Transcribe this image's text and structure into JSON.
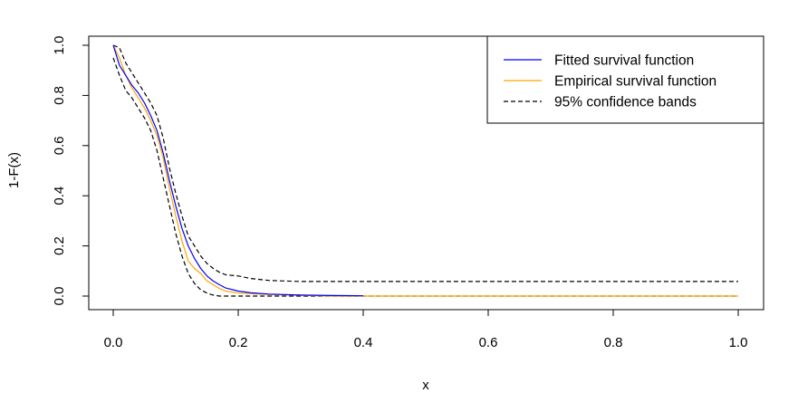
{
  "chart_data": {
    "type": "line",
    "title": "",
    "xlabel": "x",
    "ylabel": "1-F(x)",
    "xlim": [
      0,
      1
    ],
    "ylim": [
      0,
      1
    ],
    "xticks": [
      "0.0",
      "0.2",
      "0.4",
      "0.6",
      "0.8",
      "1.0"
    ],
    "yticks": [
      "0.0",
      "0.2",
      "0.4",
      "0.6",
      "0.8",
      "1.0"
    ],
    "grid": false,
    "legend_position": "top-right",
    "series": [
      {
        "name": "Fitted survival function",
        "color": "#0000ff",
        "style": "solid",
        "x": [
          0.0,
          0.01,
          0.02,
          0.03,
          0.04,
          0.05,
          0.06,
          0.07,
          0.08,
          0.09,
          0.1,
          0.11,
          0.12,
          0.13,
          0.14,
          0.15,
          0.16,
          0.17,
          0.18,
          0.2,
          0.22,
          0.25,
          0.3,
          0.35,
          0.4
        ],
        "y": [
          1.0,
          0.92,
          0.88,
          0.84,
          0.81,
          0.77,
          0.72,
          0.66,
          0.57,
          0.46,
          0.36,
          0.27,
          0.2,
          0.15,
          0.11,
          0.08,
          0.06,
          0.045,
          0.032,
          0.02,
          0.013,
          0.008,
          0.004,
          0.002,
          0.001
        ]
      },
      {
        "name": "Empirical survival function",
        "color": "#ffa500",
        "style": "solid",
        "x": [
          0.0,
          0.01,
          0.02,
          0.03,
          0.04,
          0.05,
          0.06,
          0.07,
          0.08,
          0.09,
          0.1,
          0.11,
          0.12,
          0.13,
          0.14,
          0.15,
          0.16,
          0.17,
          0.18,
          0.2,
          0.25,
          0.3,
          0.35,
          1.0
        ],
        "y": [
          1.0,
          0.95,
          0.88,
          0.83,
          0.79,
          0.75,
          0.7,
          0.64,
          0.55,
          0.43,
          0.32,
          0.22,
          0.14,
          0.11,
          0.09,
          0.06,
          0.045,
          0.03,
          0.02,
          0.012,
          0.006,
          0.003,
          0.0,
          0.0
        ]
      },
      {
        "name": "95% confidence bands",
        "color": "#000000",
        "style": "dashed",
        "x": [
          0.0,
          0.01,
          0.02,
          0.03,
          0.04,
          0.05,
          0.06,
          0.07,
          0.08,
          0.09,
          0.1,
          0.11,
          0.12,
          0.13,
          0.14,
          0.15,
          0.16,
          0.17,
          0.18,
          0.2,
          0.22,
          0.25,
          0.3,
          0.4,
          1.0
        ],
        "y": [
          1.0,
          0.99,
          0.93,
          0.89,
          0.85,
          0.81,
          0.77,
          0.72,
          0.63,
          0.51,
          0.41,
          0.32,
          0.24,
          0.2,
          0.16,
          0.13,
          0.11,
          0.095,
          0.085,
          0.08,
          0.07,
          0.062,
          0.058,
          0.058,
          0.058
        ]
      },
      {
        "name": "",
        "color": "#000000",
        "style": "dashed",
        "x": [
          0.0,
          0.01,
          0.02,
          0.03,
          0.04,
          0.05,
          0.06,
          0.07,
          0.08,
          0.09,
          0.1,
          0.11,
          0.12,
          0.13,
          0.14,
          0.15,
          0.16,
          0.17,
          0.18,
          0.2,
          1.0
        ],
        "y": [
          0.95,
          0.88,
          0.82,
          0.79,
          0.75,
          0.71,
          0.66,
          0.58,
          0.47,
          0.36,
          0.25,
          0.16,
          0.09,
          0.05,
          0.025,
          0.012,
          0.004,
          0.0,
          0.0,
          0.0,
          0.0
        ]
      }
    ],
    "legend": [
      {
        "label": "Fitted survival function",
        "color": "#0000ff",
        "style": "solid"
      },
      {
        "label": "Empirical survival function",
        "color": "#ffa500",
        "style": "solid"
      },
      {
        "label": "95% confidence bands",
        "color": "#000000",
        "style": "dashed"
      }
    ]
  }
}
